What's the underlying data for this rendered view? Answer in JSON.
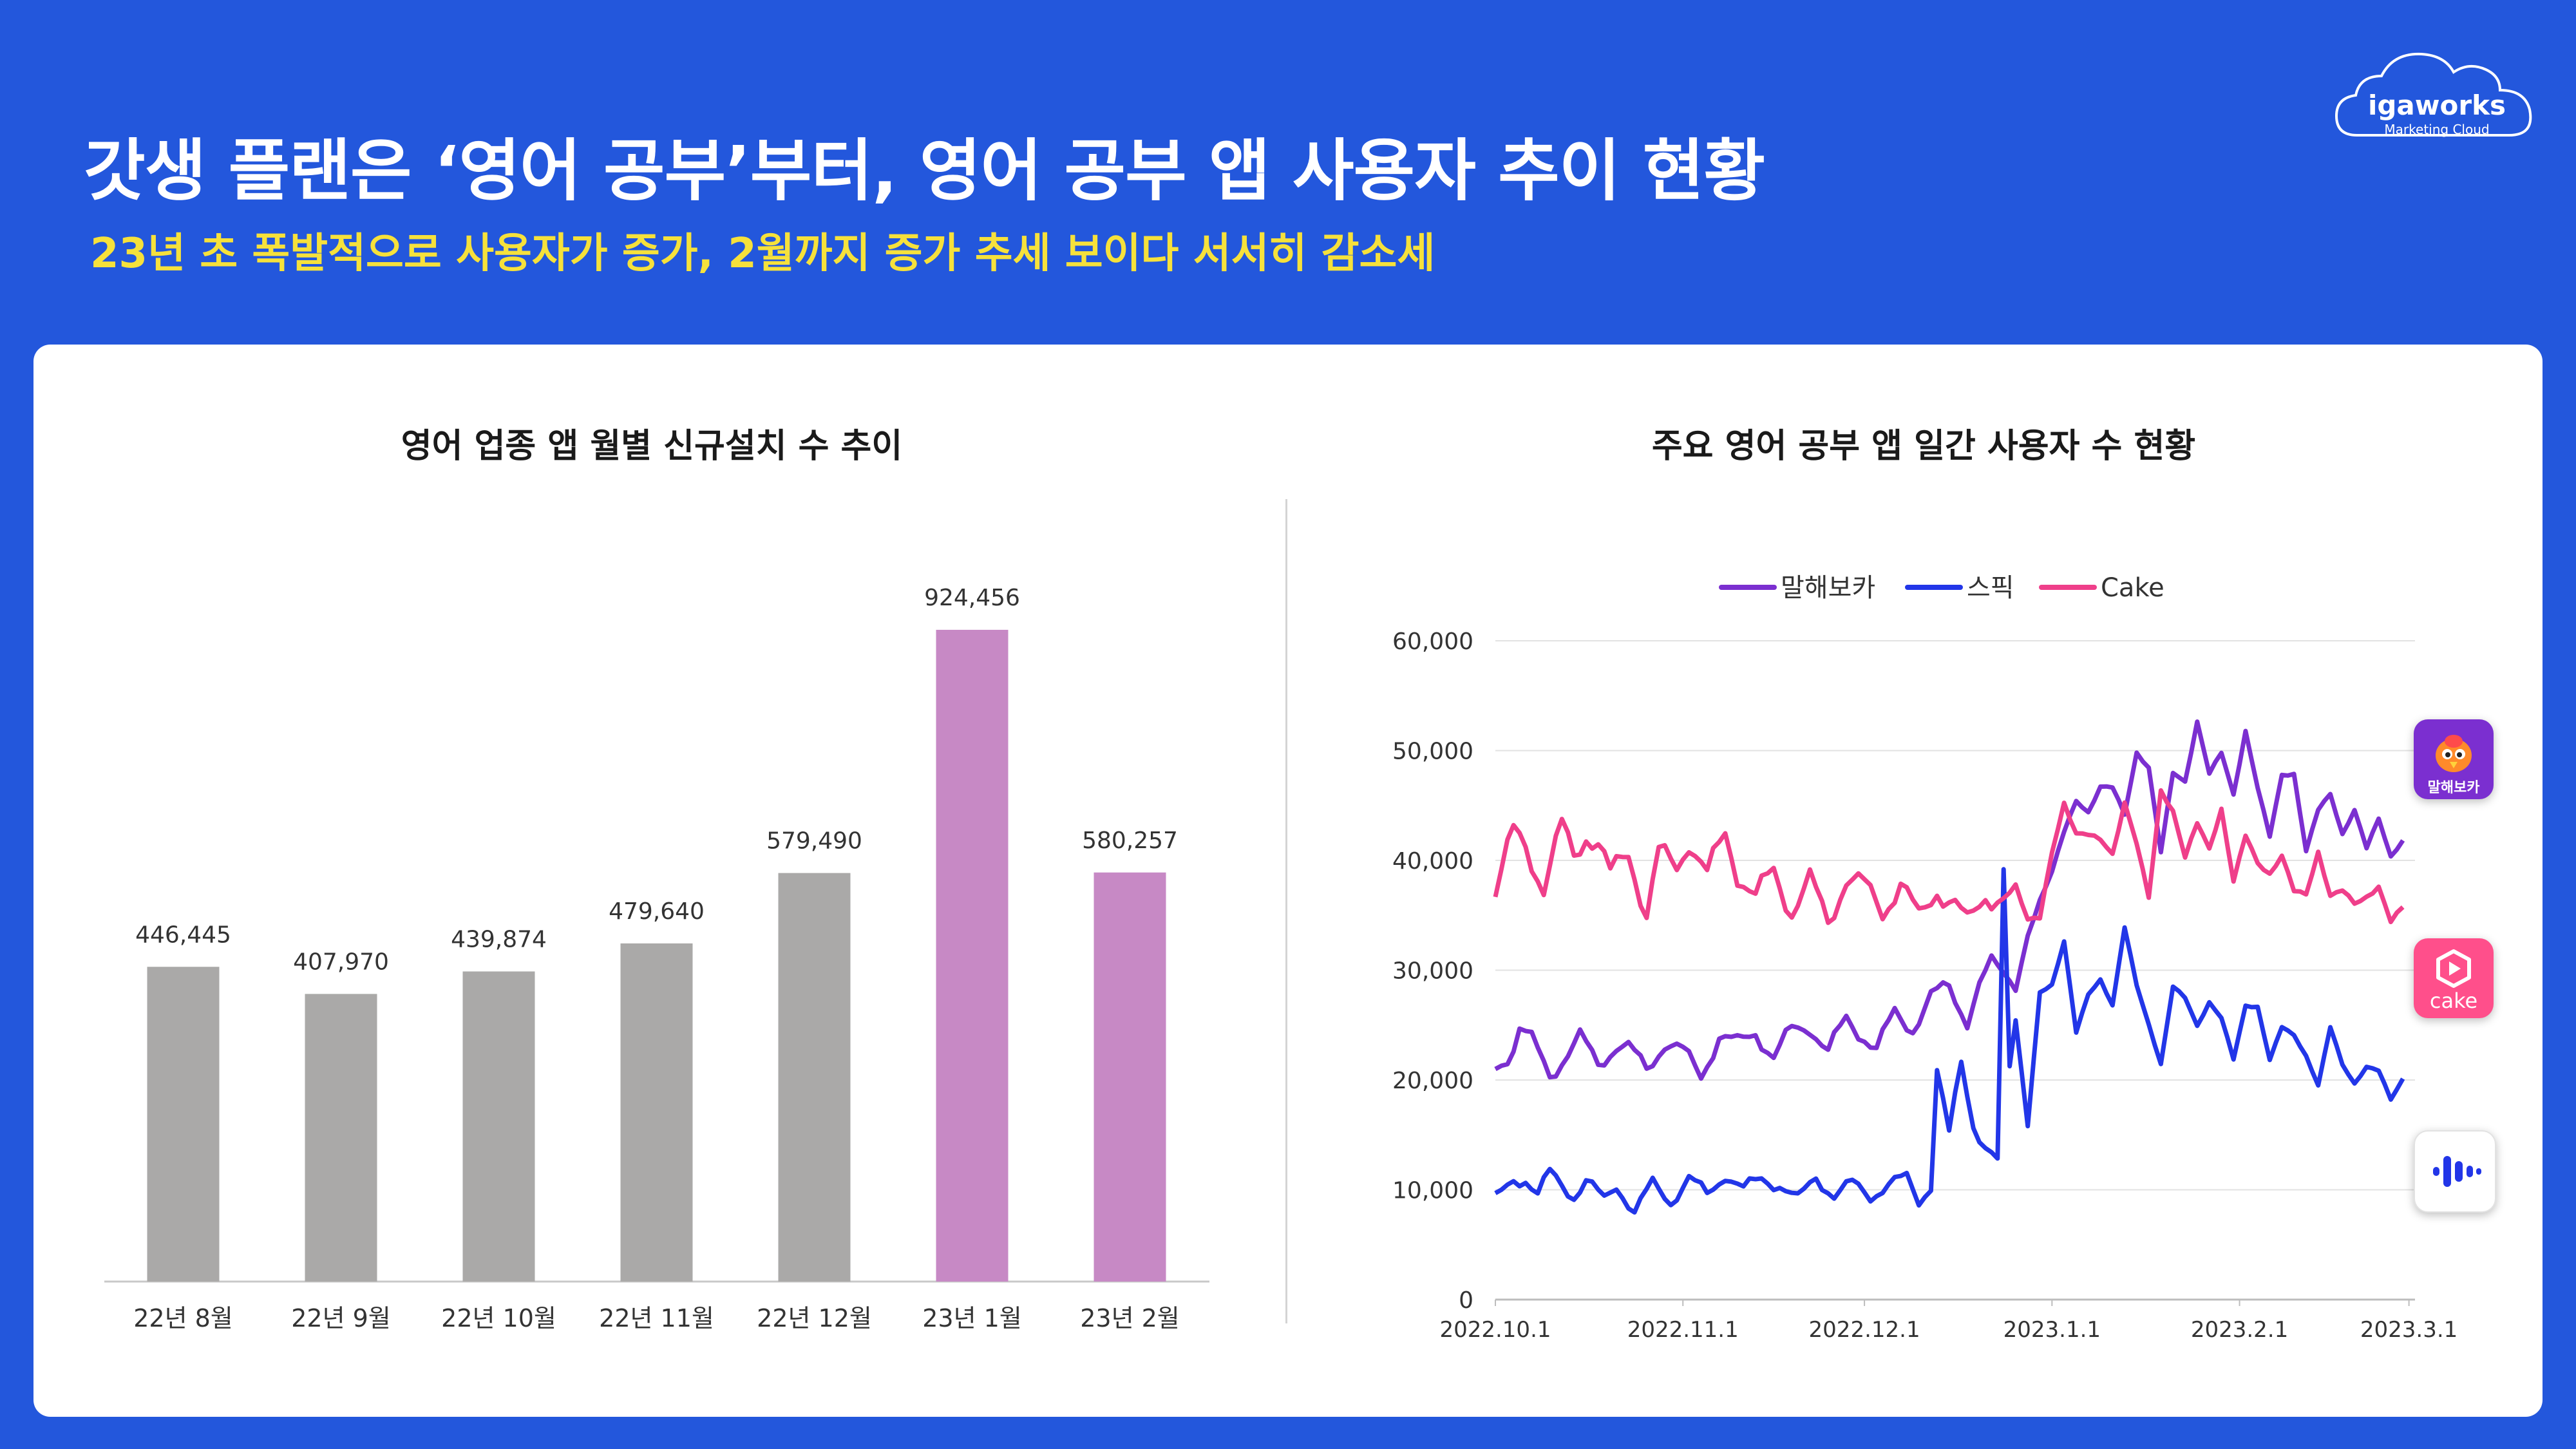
{
  "header": {
    "title": "갓생 플랜은 ‘영어 공부’부터, 영어 공부 앱 사용자 추이 현황",
    "subtitle": "23년 초 폭발적으로 사용자가 증가, 2월까지 증가 추세 보이다 서서히 감소세"
  },
  "logo": {
    "brand": "igaworks",
    "tagline": "Marketing Cloud"
  },
  "colors": {
    "background": "#2357dc",
    "gray_bar": "#aaa9a8",
    "purple_bar": "#c789c5",
    "malhaebo": "#7b2fd0",
    "speak": "#2236e8",
    "cake": "#ef3f8a",
    "subtitle": "#f6e13b"
  },
  "badges": {
    "malhaebo": {
      "icon": "parrot-icon",
      "label": "말해보카",
      "color": "#7b2fd0"
    },
    "cake": {
      "icon": "play-hexagon-icon",
      "label": "cake",
      "color": "#ff4f8b"
    },
    "speak": {
      "icon": "waveform-icon",
      "color": "#ffffff"
    }
  },
  "chart_data": [
    {
      "type": "bar",
      "title": "영어 업종 앱 월별 신규설치 수 추이",
      "categories": [
        "22년 8월",
        "22년 9월",
        "22년 10월",
        "22년 11월",
        "22년 12월",
        "23년 1월",
        "23년 2월"
      ],
      "values": [
        446445,
        407970,
        439874,
        479640,
        579490,
        924456,
        580257
      ],
      "labels": [
        "446,445",
        "407,970",
        "439,874",
        "479,640",
        "579,490",
        "924,456",
        "580,257"
      ],
      "highlight": [
        false,
        false,
        false,
        false,
        false,
        true,
        true
      ],
      "ylim": [
        0,
        950000
      ],
      "xlabel": "",
      "ylabel": ""
    },
    {
      "type": "line",
      "title": "주요 영어 공부 앱 일간 사용자 수 현황",
      "x_range": [
        "2022-10-01",
        "2023-03-03"
      ],
      "x_ticks": [
        "2022.10.1",
        "2022.11.1",
        "2022.12.1",
        "2023.1.1",
        "2023.2.1",
        "2023.3.1"
      ],
      "x_tick_days": [
        0,
        31,
        61,
        92,
        123,
        151
      ],
      "y_ticks": [
        0,
        10000,
        20000,
        30000,
        40000,
        50000,
        60000
      ],
      "y_tick_labels": [
        "0",
        "10,000",
        "20,000",
        "30,000",
        "40,000",
        "50,000",
        "60,000"
      ],
      "ylim": [
        0,
        60000
      ],
      "legend": "top",
      "series": [
        {
          "name": "말해보카",
          "color_key": "malhaebo",
          "anchors": [
            [
              0,
              21000
            ],
            [
              3,
              23000
            ],
            [
              4,
              24800
            ],
            [
              6,
              23500
            ],
            [
              9,
              20500
            ],
            [
              12,
              22500
            ],
            [
              14,
              23800
            ],
            [
              17,
              21500
            ],
            [
              20,
              23200
            ],
            [
              22,
              22800
            ],
            [
              25,
              21000
            ],
            [
              28,
              23500
            ],
            [
              31,
              22500
            ],
            [
              34,
              20500
            ],
            [
              37,
              24000
            ],
            [
              40,
              23200
            ],
            [
              43,
              24500
            ],
            [
              46,
              22000
            ],
            [
              49,
              24500
            ],
            [
              52,
              25000
            ],
            [
              55,
              22500
            ],
            [
              58,
              25500
            ],
            [
              61,
              24000
            ],
            [
              63,
              22800
            ],
            [
              66,
              26000
            ],
            [
              69,
              24800
            ],
            [
              72,
              27500
            ],
            [
              75,
              28500
            ],
            [
              78,
              25500
            ],
            [
              80,
              28500
            ],
            [
              82,
              30500
            ],
            [
              84,
              30000
            ],
            [
              86,
              29000
            ],
            [
              88,
              33000
            ],
            [
              90,
              35500
            ],
            [
              92,
              39000
            ],
            [
              94,
              43500
            ],
            [
              96,
              45500
            ],
            [
              98,
              43500
            ],
            [
              100,
              46500
            ],
            [
              102,
              47500
            ],
            [
              104,
              44500
            ],
            [
              106,
              49000
            ],
            [
              108,
              48000
            ],
            [
              110,
              41500
            ],
            [
              112,
              48500
            ],
            [
              114,
              46500
            ],
            [
              116,
              52000
            ],
            [
              118,
              48500
            ],
            [
              120,
              50500
            ],
            [
              122,
              45500
            ],
            [
              124,
              51000
            ],
            [
              126,
              47000
            ],
            [
              128,
              43000
            ],
            [
              130,
              47500
            ],
            [
              132,
              47000
            ],
            [
              134,
              41000
            ],
            [
              136,
              45500
            ],
            [
              138,
              46000
            ],
            [
              140,
              41500
            ],
            [
              142,
              44500
            ],
            [
              144,
              42000
            ],
            [
              146,
              44000
            ],
            [
              148,
              39500
            ],
            [
              150,
              41500
            ]
          ],
          "amp": 900
        },
        {
          "name": "스픽",
          "color_key": "speak",
          "anchors": [
            [
              0,
              9000
            ],
            [
              3,
              11000
            ],
            [
              5,
              11000
            ],
            [
              7,
              9500
            ],
            [
              9,
              11500
            ],
            [
              11,
              10500
            ],
            [
              13,
              9500
            ],
            [
              15,
              10800
            ],
            [
              18,
              9000
            ],
            [
              20,
              10500
            ],
            [
              23,
              8000
            ],
            [
              26,
              10500
            ],
            [
              29,
              9000
            ],
            [
              32,
              11000
            ],
            [
              35,
              9500
            ],
            [
              38,
              11500
            ],
            [
              41,
              10000
            ],
            [
              44,
              11000
            ],
            [
              47,
              10500
            ],
            [
              50,
              9000
            ],
            [
              53,
              11200
            ],
            [
              56,
              9500
            ],
            [
              59,
              10500
            ],
            [
              62,
              9500
            ],
            [
              65,
              10500
            ],
            [
              68,
              11000
            ],
            [
              70,
              9000
            ],
            [
              72,
              10500
            ],
            [
              73,
              21000
            ],
            [
              75,
              15000
            ],
            [
              77,
              21500
            ],
            [
              79,
              16000
            ],
            [
              81,
              14000
            ],
            [
              83,
              12500
            ],
            [
              84,
              38500
            ],
            [
              85,
              21000
            ],
            [
              86,
              25500
            ],
            [
              88,
              16500
            ],
            [
              90,
              28000
            ],
            [
              92,
              28000
            ],
            [
              94,
              32500
            ],
            [
              96,
              25000
            ],
            [
              98,
              28000
            ],
            [
              100,
              28500
            ],
            [
              102,
              26500
            ],
            [
              104,
              34500
            ],
            [
              106,
              29000
            ],
            [
              108,
              24500
            ],
            [
              110,
              21000
            ],
            [
              112,
              29000
            ],
            [
              114,
              28000
            ],
            [
              116,
              24500
            ],
            [
              118,
              26500
            ],
            [
              120,
              26000
            ],
            [
              122,
              22500
            ],
            [
              124,
              26500
            ],
            [
              126,
              26000
            ],
            [
              128,
              22000
            ],
            [
              130,
              25500
            ],
            [
              132,
              24000
            ],
            [
              134,
              21500
            ],
            [
              136,
              19500
            ],
            [
              138,
              25500
            ],
            [
              140,
              21500
            ],
            [
              142,
              19000
            ],
            [
              144,
              21000
            ],
            [
              146,
              21500
            ],
            [
              148,
              18500
            ],
            [
              150,
              19500
            ]
          ],
          "amp": 700
        },
        {
          "name": "Cake",
          "color_key": "cake",
          "anchors": [
            [
              0,
              37000
            ],
            [
              3,
              42500
            ],
            [
              5,
              41500
            ],
            [
              8,
              37500
            ],
            [
              11,
              43000
            ],
            [
              13,
              40500
            ],
            [
              15,
              42500
            ],
            [
              17,
              41500
            ],
            [
              19,
              38500
            ],
            [
              22,
              41000
            ],
            [
              25,
              35000
            ],
            [
              27,
              40500
            ],
            [
              30,
              39500
            ],
            [
              32,
              42000
            ],
            [
              35,
              38500
            ],
            [
              38,
              42500
            ],
            [
              40,
              39000
            ],
            [
              43,
              36500
            ],
            [
              46,
              39000
            ],
            [
              49,
              35500
            ],
            [
              52,
              38000
            ],
            [
              55,
              34500
            ],
            [
              58,
              38500
            ],
            [
              61,
              37500
            ],
            [
              64,
              35500
            ],
            [
              67,
              38000
            ],
            [
              70,
              34500
            ],
            [
              73,
              37500
            ],
            [
              76,
              36000
            ],
            [
              78,
              34000
            ],
            [
              81,
              37000
            ],
            [
              84,
              36500
            ],
            [
              86,
              36500
            ],
            [
              88,
              34500
            ],
            [
              90,
              36000
            ],
            [
              92,
              41000
            ],
            [
              94,
              44000
            ],
            [
              96,
              42000
            ],
            [
              98,
              43500
            ],
            [
              100,
              42500
            ],
            [
              102,
              39500
            ],
            [
              104,
              44500
            ],
            [
              106,
              42500
            ],
            [
              108,
              37500
            ],
            [
              110,
              45500
            ],
            [
              112,
              43500
            ],
            [
              114,
              41000
            ],
            [
              116,
              44500
            ],
            [
              118,
              40500
            ],
            [
              120,
              43500
            ],
            [
              122,
              38500
            ],
            [
              124,
              43500
            ],
            [
              126,
              39500
            ],
            [
              128,
              37500
            ],
            [
              130,
              40500
            ],
            [
              132,
              38500
            ],
            [
              134,
              37000
            ],
            [
              136,
              39500
            ],
            [
              138,
              36500
            ],
            [
              140,
              38500
            ],
            [
              142,
              36500
            ],
            [
              144,
              35500
            ],
            [
              146,
              37000
            ],
            [
              148,
              35500
            ],
            [
              150,
              36500
            ]
          ],
          "amp": 1300
        }
      ]
    }
  ]
}
